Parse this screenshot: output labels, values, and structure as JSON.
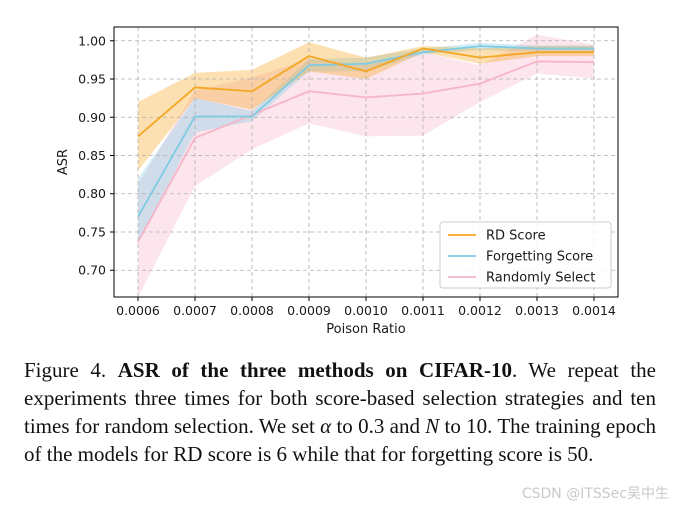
{
  "chart_data": {
    "type": "line",
    "title": "",
    "xlabel": "Poison Ratio",
    "ylabel": "ASR",
    "categories": [
      "0.0006",
      "0.0007",
      "0.0008",
      "0.0009",
      "0.0010",
      "0.0011",
      "0.0012",
      "0.0013",
      "0.0014"
    ],
    "y_ticks": [
      "0.70",
      "0.75",
      "0.80",
      "0.85",
      "0.90",
      "0.95",
      "1.00"
    ],
    "ylim": [
      0.665,
      1.018
    ],
    "grid": true,
    "legend_position": "lower-right",
    "series": [
      {
        "name": "RD Score",
        "color": "#f5a623",
        "values": [
          0.875,
          0.939,
          0.934,
          0.98,
          0.96,
          0.99,
          0.978,
          0.985,
          0.985
        ],
        "lower": [
          0.83,
          0.925,
          0.91,
          0.96,
          0.95,
          0.985,
          0.97,
          0.98,
          0.98
        ],
        "upper": [
          0.92,
          0.958,
          0.962,
          0.998,
          0.978,
          0.993,
          0.99,
          0.993,
          0.993
        ]
      },
      {
        "name": "Forgetting Score",
        "color": "#7ecbe4",
        "values": [
          0.77,
          0.901,
          0.901,
          0.968,
          0.97,
          0.985,
          0.993,
          0.99,
          0.99
        ],
        "lower": [
          0.735,
          0.88,
          0.895,
          0.96,
          0.96,
          0.982,
          0.988,
          0.986,
          0.986
        ],
        "upper": [
          0.82,
          0.925,
          0.908,
          0.976,
          0.978,
          0.99,
          0.997,
          0.994,
          0.994
        ]
      },
      {
        "name": "Randomly Select",
        "color": "#f6b5c8",
        "values": [
          0.737,
          0.873,
          0.903,
          0.934,
          0.926,
          0.931,
          0.944,
          0.973,
          0.972
        ],
        "lower": [
          0.665,
          0.81,
          0.858,
          0.892,
          0.875,
          0.876,
          0.92,
          0.957,
          0.951
        ],
        "upper": [
          0.812,
          0.935,
          0.952,
          0.976,
          0.968,
          0.985,
          0.968,
          1.008,
          0.995
        ]
      }
    ]
  },
  "caption": {
    "fig_label": "Figure 4. ",
    "bold_title": "ASR of the three methods on CIFAR-10",
    "t1": ". We repeat the experiments three times for both score-based selection strategies and ten times for random selection. We set ",
    "alpha": "α",
    "t2": " to 0.3 and ",
    "n": "N",
    "t3": " to 10. The training epoch of the models for RD score is 6 while that for forgetting score is 50."
  },
  "watermark": "CSDN @ITSSec吴中生"
}
